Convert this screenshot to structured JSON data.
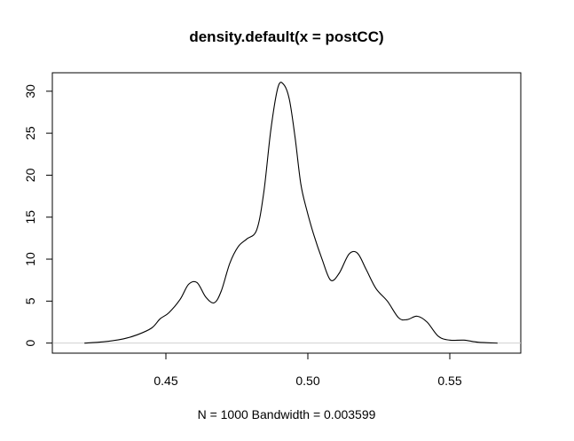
{
  "chart_data": {
    "type": "line",
    "title": "density.default(x = postCC)",
    "xlabel": "N = 1000   Bandwidth = 0.003599",
    "ylabel": "",
    "xlim": [
      0.41,
      0.575
    ],
    "ylim": [
      -1.2,
      32.2
    ],
    "x_ticks": [
      0.45,
      0.5,
      0.55
    ],
    "x_tick_labels": [
      "0.45",
      "0.50",
      "0.55"
    ],
    "y_ticks": [
      0,
      5,
      10,
      15,
      20,
      25,
      30
    ],
    "y_tick_labels": [
      "0",
      "5",
      "10",
      "15",
      "20",
      "25",
      "30"
    ],
    "grid": false,
    "legend": "none",
    "line_color": "#000000",
    "zero_line_color": "#d0d0d0",
    "series": [
      {
        "x": [
          0.4213,
          0.428,
          0.435,
          0.44,
          0.445,
          0.448,
          0.451,
          0.455,
          0.458,
          0.461,
          0.464,
          0.467,
          0.4695,
          0.4725,
          0.4755,
          0.4785,
          0.482,
          0.4845,
          0.487,
          0.4895,
          0.4915,
          0.4935,
          0.4955,
          0.4975,
          0.4995,
          0.502,
          0.505,
          0.508,
          0.511,
          0.5145,
          0.5175,
          0.5205,
          0.524,
          0.528,
          0.532,
          0.535,
          0.5385,
          0.542,
          0.546,
          0.55,
          0.555,
          0.56,
          0.5668
        ],
        "y": [
          0.0,
          0.15,
          0.5,
          1.0,
          1.8,
          2.9,
          3.6,
          5.2,
          7.0,
          7.2,
          5.5,
          4.8,
          6.2,
          9.5,
          11.5,
          12.4,
          13.5,
          18.0,
          25.5,
          30.5,
          30.8,
          29.0,
          24.5,
          19.0,
          16.0,
          13.0,
          10.0,
          7.5,
          8.3,
          10.6,
          10.7,
          8.8,
          6.5,
          5.0,
          3.0,
          2.8,
          3.2,
          2.5,
          0.8,
          0.35,
          0.35,
          0.1,
          0.0
        ]
      }
    ]
  }
}
